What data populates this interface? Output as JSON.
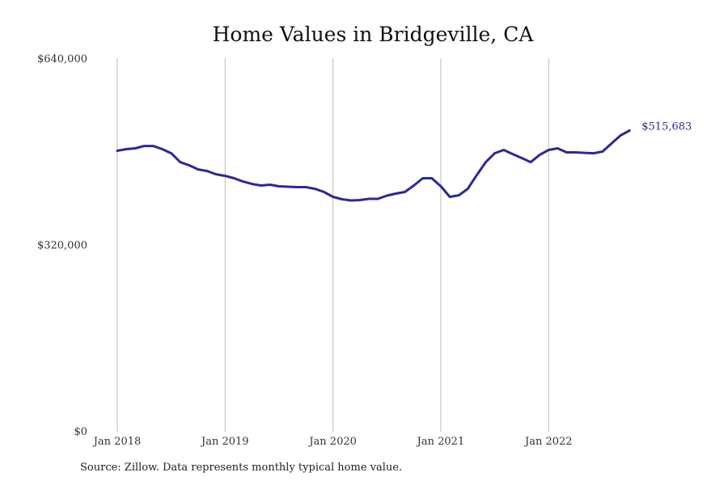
{
  "chart_data": {
    "type": "line",
    "title": "Home Values in Bridgeville, CA",
    "xlabel": "",
    "ylabel": "",
    "ylim": [
      0,
      640000
    ],
    "yticks": [
      {
        "value": 0,
        "label": "$0"
      },
      {
        "value": 320000,
        "label": "$320,000"
      },
      {
        "value": 640000,
        "label": "$640,000"
      }
    ],
    "xticks": [
      {
        "index": 0,
        "label": "Jan 2018"
      },
      {
        "index": 12,
        "label": "Jan 2019"
      },
      {
        "index": 24,
        "label": "Jan 2020"
      },
      {
        "index": 36,
        "label": "Jan 2021"
      },
      {
        "index": 48,
        "label": "Jan 2022"
      }
    ],
    "grid": "vertical at year starts",
    "x_start": "Jan 2018",
    "x_frequency": "monthly",
    "color": "#2e2a8f",
    "grid_color": "#bbbbbb",
    "end_label": "$515,683",
    "series": [
      {
        "name": "Home value",
        "values": [
          481000,
          483800,
          485200,
          489300,
          489300,
          483800,
          476800,
          461500,
          456000,
          449000,
          446200,
          440700,
          437900,
          433800,
          428200,
          424000,
          421300,
          422700,
          419900,
          419200,
          418500,
          418500,
          415700,
          410200,
          401900,
          397700,
          395600,
          396300,
          398400,
          398400,
          404000,
          407400,
          410200,
          421300,
          433800,
          433800,
          419900,
          401900,
          404600,
          415700,
          439300,
          461500,
          476800,
          482400,
          475400,
          468500,
          461500,
          474000,
          482400,
          485200,
          478200,
          478200,
          477500,
          476800,
          479600,
          493500,
          507400,
          515683
        ]
      }
    ]
  },
  "source_note": "Source: Zillow. Data represents monthly typical home value."
}
